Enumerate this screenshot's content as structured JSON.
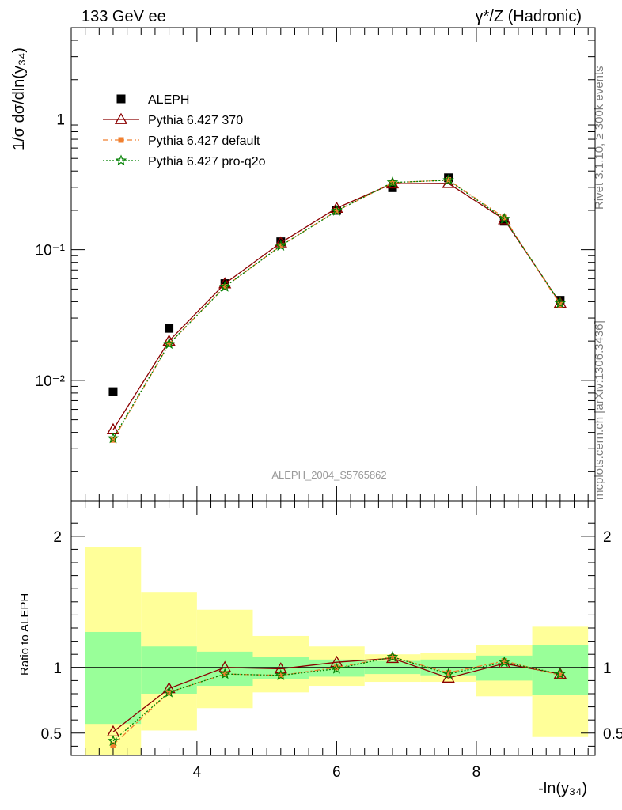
{
  "header": {
    "left_label": "133 GeV ee",
    "right_label": "γ*/Z (Hadronic)"
  },
  "side_texts": {
    "rivet": "Rivet 3.1.10, ≥ 300k events",
    "source": "mcplots.cern.ch [arXiv:1306.3436]"
  },
  "analysis_label": "ALEPH_2004_S5765862",
  "axes": {
    "main_ylabel": "1/σ dσ/dln(y₃₄)",
    "ratio_ylabel": "Ratio to ALEPH",
    "xlabel": "-ln(y₃₄)"
  },
  "colors": {
    "aleph": "#000000",
    "p370": "#8b0000",
    "default": "#f08030",
    "proq2o": "#008000",
    "band_inner": "#99ff99",
    "band_outer": "#ffff99"
  },
  "chart_data": [
    {
      "type": "scatter",
      "scale": "log-y",
      "xlim": [
        2.2,
        9.7
      ],
      "ylim": [
        0.0012,
        5.0
      ],
      "y_ticks": [
        {
          "value": 0.01,
          "label": "10⁻²"
        },
        {
          "value": 0.1,
          "label": "10⁻¹"
        },
        {
          "value": 1,
          "label": "1"
        }
      ],
      "x": [
        2.8,
        3.6,
        4.4,
        5.2,
        6.0,
        6.8,
        7.6,
        8.4,
        9.2
      ],
      "legend_position": "top-left",
      "series": [
        {
          "name": "ALEPH",
          "key": "aleph",
          "marker": "square",
          "values": [
            0.0082,
            0.025,
            0.055,
            0.115,
            0.2,
            0.298,
            0.355,
            0.165,
            0.041
          ]
        },
        {
          "name": "Pythia 6.427 370",
          "key": "p370",
          "marker": "triangle-open",
          "line": "solid",
          "values": [
            0.0042,
            0.02,
            0.055,
            0.113,
            0.208,
            0.32,
            0.322,
            0.17,
            0.039
          ]
        },
        {
          "name": "Pythia 6.427 default",
          "key": "default",
          "marker": "square-small",
          "line": "dashdot",
          "values": [
            0.0035,
            0.019,
            0.052,
            0.107,
            0.198,
            0.325,
            0.342,
            0.176,
            0.038
          ]
        },
        {
          "name": "Pythia 6.427 pro-q2o",
          "key": "proq2o",
          "marker": "star",
          "line": "dotted",
          "values": [
            0.0036,
            0.019,
            0.052,
            0.107,
            0.198,
            0.327,
            0.34,
            0.172,
            0.039
          ]
        }
      ]
    },
    {
      "type": "line",
      "xlim": [
        2.2,
        9.7
      ],
      "ylim": [
        0.33,
        2.27
      ],
      "y_ticks": [
        {
          "value": 0.5,
          "label": "0.5"
        },
        {
          "value": 1,
          "label": "1"
        },
        {
          "value": 2,
          "label": "2"
        }
      ],
      "x_ticks": [
        {
          "value": 4,
          "label": "4"
        },
        {
          "value": 6,
          "label": "6"
        },
        {
          "value": 8,
          "label": "8"
        }
      ],
      "reference_line": 1,
      "bins": [
        [
          2.4,
          3.2
        ],
        [
          3.2,
          4.0
        ],
        [
          4.0,
          4.8
        ],
        [
          4.8,
          5.6
        ],
        [
          5.6,
          6.4
        ],
        [
          6.4,
          7.2
        ],
        [
          7.2,
          8.0
        ],
        [
          8.0,
          8.8
        ],
        [
          8.8,
          9.6
        ]
      ],
      "band_inner": [
        [
          0.57,
          1.27
        ],
        [
          0.8,
          1.16
        ],
        [
          0.86,
          1.12
        ],
        [
          0.91,
          1.08
        ],
        [
          0.93,
          1.06
        ],
        [
          0.95,
          1.05
        ],
        [
          0.94,
          1.06
        ],
        [
          0.9,
          1.09
        ],
        [
          0.79,
          1.17
        ]
      ],
      "band_outer": [
        [
          0.33,
          1.92
        ],
        [
          0.52,
          1.57
        ],
        [
          0.69,
          1.44
        ],
        [
          0.81,
          1.24
        ],
        [
          0.86,
          1.16
        ],
        [
          0.89,
          1.1
        ],
        [
          0.89,
          1.11
        ],
        [
          0.78,
          1.17
        ],
        [
          0.47,
          1.31
        ]
      ],
      "x": [
        2.8,
        3.6,
        4.4,
        5.2,
        6.0,
        6.8,
        7.6,
        8.4,
        9.2
      ],
      "series": [
        {
          "name": "Pythia 6.427 370",
          "key": "p370",
          "values": [
            0.51,
            0.84,
            1.0,
            0.99,
            1.04,
            1.07,
            0.92,
            1.03,
            0.95
          ]
        },
        {
          "name": "Pythia 6.427 default",
          "key": "default",
          "values": [
            0.41,
            0.81,
            0.95,
            0.94,
            1.0,
            1.08,
            0.96,
            1.05,
            0.94
          ]
        },
        {
          "name": "Pythia 6.427 pro-q2o",
          "key": "proq2o",
          "values": [
            0.44,
            0.81,
            0.95,
            0.94,
            0.99,
            1.08,
            0.95,
            1.04,
            0.95
          ]
        }
      ]
    }
  ]
}
